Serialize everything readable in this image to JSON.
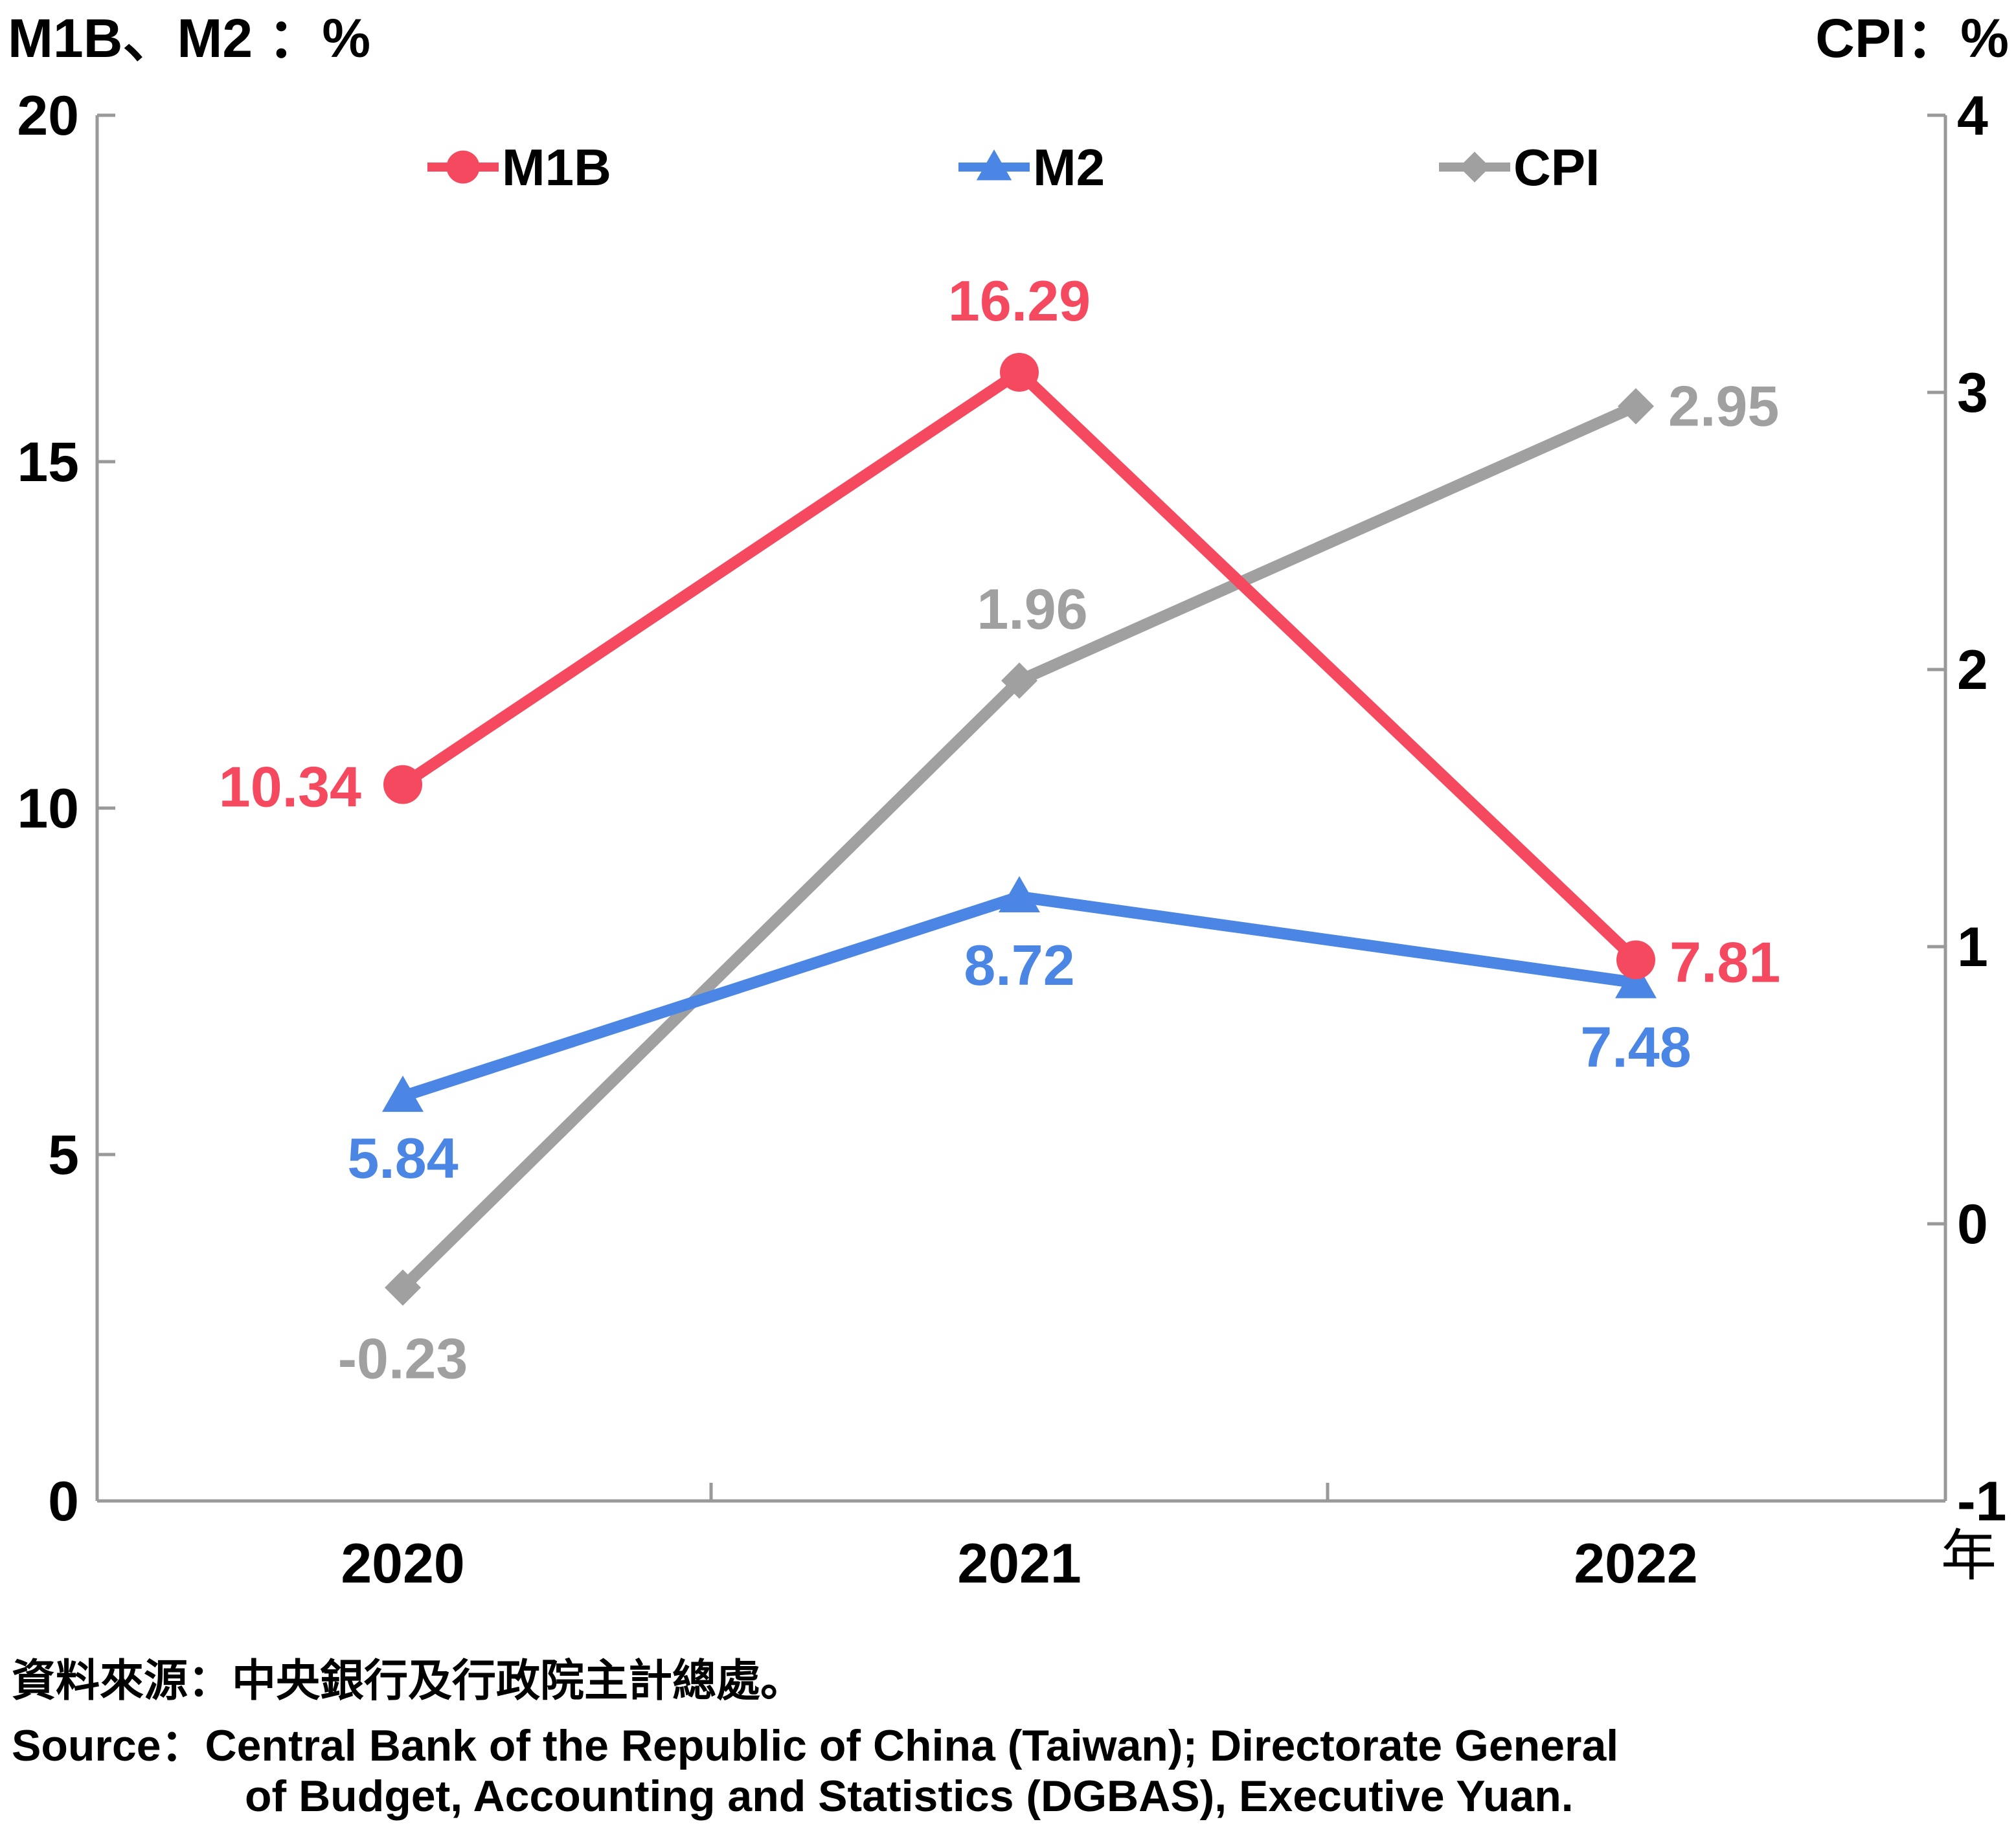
{
  "chart_data": {
    "type": "line",
    "left_axis_title": "M1B、M2 ：%",
    "right_axis_title": "CPI：%",
    "x_unit": "年",
    "categories": [
      "2020",
      "2021",
      "2022"
    ],
    "left_ylim": [
      0,
      20
    ],
    "left_ticks": [
      "0",
      "5",
      "10",
      "15",
      "20"
    ],
    "right_ylim": [
      -1,
      4
    ],
    "right_ticks": [
      "-1",
      "0",
      "1",
      "2",
      "3",
      "4"
    ],
    "legend_position": "top",
    "series": [
      {
        "name": "M1B",
        "axis": "left",
        "color": "#F5495F",
        "marker": "circle",
        "values": [
          10.34,
          16.29,
          7.81
        ],
        "labels": [
          "10.34",
          "16.29",
          "7.81"
        ]
      },
      {
        "name": "M2",
        "axis": "left",
        "color": "#4C86E4",
        "marker": "triangle",
        "values": [
          5.84,
          8.72,
          7.48
        ],
        "labels": [
          "5.84",
          "8.72",
          "7.48"
        ]
      },
      {
        "name": "CPI",
        "axis": "right",
        "color": "#A0A0A0",
        "marker": "diamond",
        "values": [
          -0.23,
          1.96,
          2.95
        ],
        "labels": [
          "-0.23",
          "1.96",
          "2.95"
        ]
      }
    ]
  },
  "source": {
    "zh": "資料來源：中央銀行及行政院主計總處。",
    "en_line1": "Source：Central Bank of the Republic of China (Taiwan); Directorate General",
    "en_line2": "of Budget, Accounting and Statistics (DGBAS), Executive Yuan."
  }
}
